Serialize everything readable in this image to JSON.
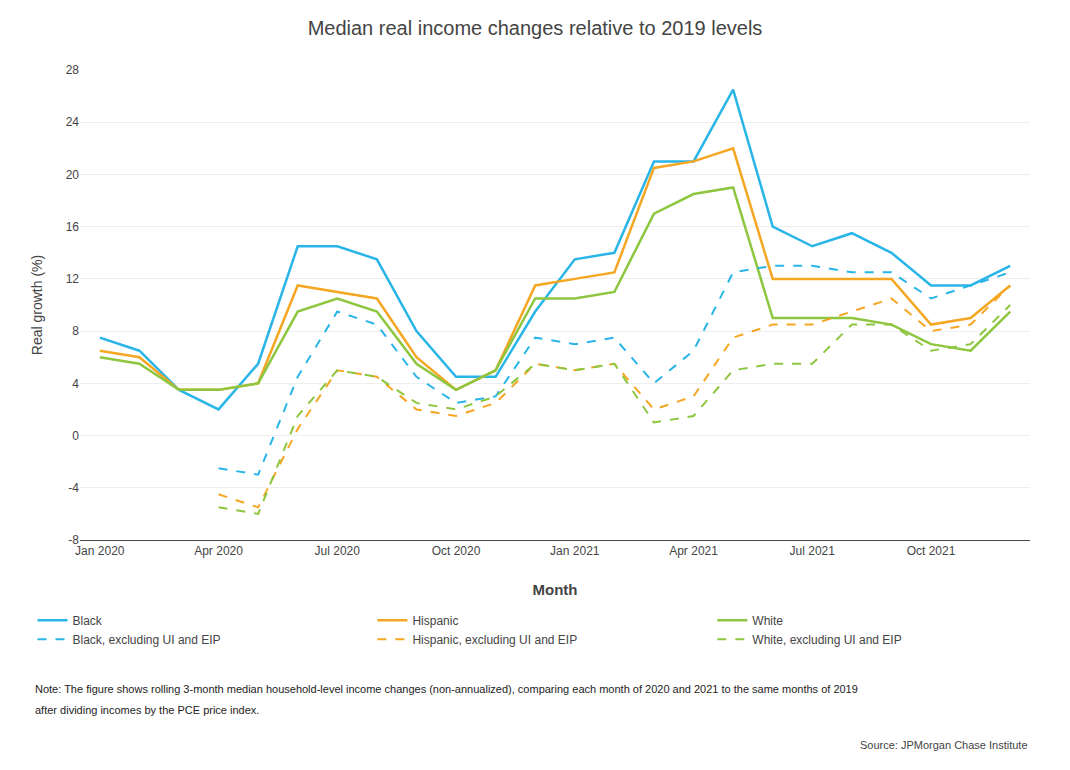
{
  "chart_data": {
    "type": "line",
    "title": "Median real income changes relative to 2019 levels",
    "x_label": "Month",
    "y_label": "Real growth (%)",
    "categories": [
      "Jan 2020",
      null,
      null,
      "Apr 2020",
      null,
      null,
      "Jul 2020",
      null,
      null,
      "Oct 2020",
      null,
      null,
      "Jan 2021",
      null,
      null,
      "Apr 2021",
      null,
      null,
      "Jul 2021",
      null,
      null,
      "Oct 2021",
      null,
      null
    ],
    "series": [
      {
        "name": "Black",
        "color": "#29b5e8",
        "line_style": "solid",
        "values": [
          7.5,
          6.5,
          3.5,
          2.0,
          5.5,
          14.5,
          14.5,
          13.5,
          8.0,
          4.5,
          4.5,
          9.5,
          13.5,
          14.0,
          21.0,
          21.0,
          26.5,
          16.0,
          14.5,
          15.5,
          14.0,
          11.5,
          11.5,
          13.0
        ]
      },
      {
        "name": "Hispanic",
        "color": "#f5a623",
        "line_style": "solid",
        "values": [
          6.5,
          6.0,
          3.5,
          3.5,
          4.0,
          11.5,
          11.0,
          10.5,
          6.0,
          3.5,
          5.0,
          11.5,
          12.0,
          12.5,
          20.5,
          21.0,
          22.0,
          12.0,
          12.0,
          12.0,
          12.0,
          8.5,
          9.0,
          11.5
        ]
      },
      {
        "name": "White",
        "color": "#8dc63f",
        "line_style": "solid",
        "values": [
          6.0,
          5.5,
          3.5,
          3.5,
          4.0,
          9.5,
          10.5,
          9.5,
          5.5,
          3.5,
          5.0,
          10.5,
          10.5,
          11.0,
          17.0,
          18.5,
          19.0,
          9.0,
          9.0,
          9.0,
          8.5,
          7.0,
          6.5,
          9.5
        ]
      },
      {
        "name": "Black, excluding UI and EIP",
        "color": "#29b5e8",
        "line_style": "dashed",
        "values": [
          null,
          null,
          null,
          -2.5,
          -3.0,
          4.5,
          9.5,
          8.5,
          4.5,
          2.5,
          3.0,
          7.5,
          7.0,
          7.5,
          4.0,
          6.5,
          12.5,
          13.0,
          13.0,
          12.5,
          12.5,
          10.5,
          11.5,
          12.5
        ]
      },
      {
        "name": "Hispanic, excluding UI and EIP",
        "color": "#f5a623",
        "line_style": "dashed",
        "values": [
          null,
          null,
          null,
          -4.5,
          -5.5,
          0.5,
          5.0,
          4.5,
          2.0,
          1.5,
          2.5,
          5.5,
          5.0,
          5.5,
          2.0,
          3.0,
          7.5,
          8.5,
          8.5,
          9.5,
          10.5,
          8.0,
          8.5,
          11.5
        ]
      },
      {
        "name": "White, excluding UI and EIP",
        "color": "#8dc63f",
        "line_style": "dashed",
        "values": [
          null,
          null,
          null,
          -5.5,
          -6.0,
          1.5,
          5.0,
          4.5,
          2.5,
          2.0,
          3.0,
          5.5,
          5.0,
          5.5,
          1.0,
          1.5,
          5.0,
          5.5,
          5.5,
          8.5,
          8.5,
          6.5,
          7.0,
          10.0
        ]
      }
    ],
    "ylim": [
      -8,
      28
    ],
    "yticks": [
      -8,
      -4,
      0,
      4,
      8,
      12,
      16,
      20,
      24,
      28
    ],
    "grid": "y",
    "legend": "bottom",
    "annotations": [
      "Note: The figure shows rolling 3-month median household-level income changes (non-annualized), comparing each month of 2020 and 2021 to the same months of 2019",
      "after dividing incomes by the PCE price index.",
      "Source: JPMorgan Chase Institute"
    ]
  }
}
